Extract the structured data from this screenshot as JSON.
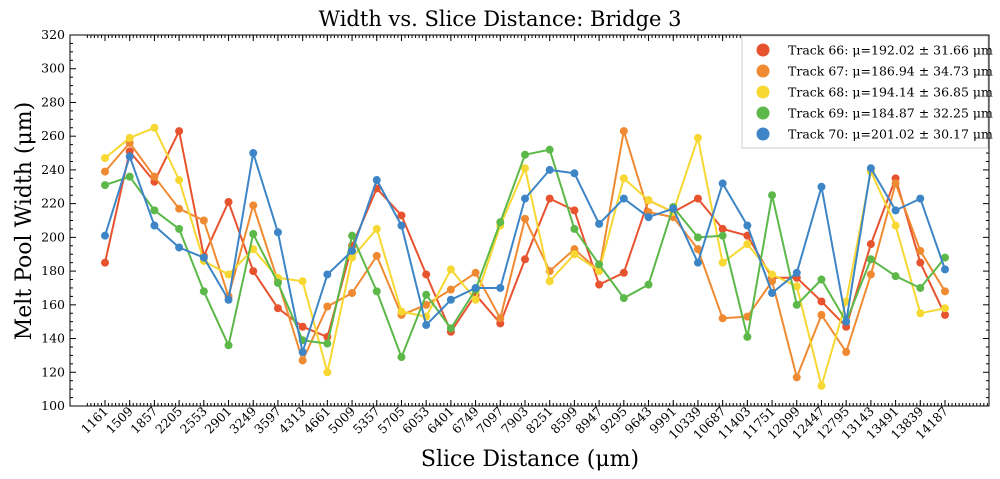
{
  "chart_data": {
    "type": "line",
    "title": "Width vs. Slice Distance: Bridge 3",
    "xlabel": "Slice Distance (μm)",
    "ylabel": "Melt Pool Width (μm)",
    "ylim": [
      100,
      320
    ],
    "yticks": [
      100,
      120,
      140,
      160,
      180,
      200,
      220,
      240,
      260,
      280,
      300,
      320
    ],
    "grid": false,
    "legend_position": "top-right",
    "x": [
      1161,
      1509,
      1857,
      2205,
      2553,
      2901,
      3249,
      3597,
      4313,
      4661,
      5009,
      5357,
      5705,
      6053,
      6401,
      6749,
      7097,
      7903,
      8251,
      8599,
      8947,
      9295,
      9643,
      9991,
      10339,
      10687,
      11403,
      11751,
      12099,
      12447,
      12795,
      13143,
      13491,
      13839,
      14187
    ],
    "series": [
      {
        "name": "Track 66",
        "legend": "Track 66: μ=192.02 ± 31.66 μm",
        "color": "#e8532f",
        "values": [
          185,
          251,
          233,
          263,
          189,
          221,
          180,
          158,
          147,
          141,
          195,
          229,
          213,
          178,
          144,
          166,
          149,
          187,
          223,
          216,
          172,
          179,
          222,
          215,
          223,
          205,
          201,
          176,
          176,
          162,
          147,
          196,
          235,
          185,
          154
        ]
      },
      {
        "name": "Track 67",
        "legend": "Track 67: μ=186.94 ± 34.73 μm",
        "color": "#f08a32",
        "values": [
          239,
          256,
          236,
          217,
          210,
          165,
          219,
          174,
          127,
          159,
          167,
          189,
          154,
          160,
          169,
          179,
          152,
          211,
          180,
          193,
          180,
          263,
          215,
          212,
          193,
          152,
          153,
          174,
          117,
          154,
          132,
          178,
          232,
          192,
          168
        ]
      },
      {
        "name": "Track 68",
        "legend": "Track 68: μ=194.14 ± 36.85 μm",
        "color": "#f7d832",
        "values": [
          247,
          259,
          265,
          234,
          186,
          178,
          193,
          176,
          174,
          120,
          188,
          205,
          156,
          153,
          181,
          163,
          207,
          241,
          174,
          190,
          180,
          235,
          222,
          215,
          259,
          185,
          196,
          178,
          171,
          112,
          162,
          239,
          207,
          155,
          158
        ]
      },
      {
        "name": "Track 69",
        "legend": "Track 69: μ=184.87 ± 32.25 μm",
        "color": "#5cb848",
        "values": [
          231,
          236,
          216,
          205,
          168,
          136,
          202,
          173,
          139,
          137,
          201,
          168,
          129,
          166,
          146,
          169,
          209,
          249,
          252,
          205,
          184,
          164,
          172,
          218,
          200,
          201,
          141,
          225,
          160,
          175,
          150,
          187,
          177,
          170,
          188
        ]
      },
      {
        "name": "Track 70",
        "legend": "Track 70: μ=201.02 ± 30.17 μm",
        "color": "#3d85c6",
        "values": [
          201,
          248,
          207,
          194,
          188,
          163,
          250,
          203,
          132,
          178,
          192,
          234,
          207,
          148,
          163,
          170,
          170,
          223,
          240,
          238,
          208,
          223,
          212,
          217,
          185,
          232,
          207,
          167,
          179,
          230,
          150,
          241,
          216,
          223,
          181
        ]
      }
    ]
  }
}
